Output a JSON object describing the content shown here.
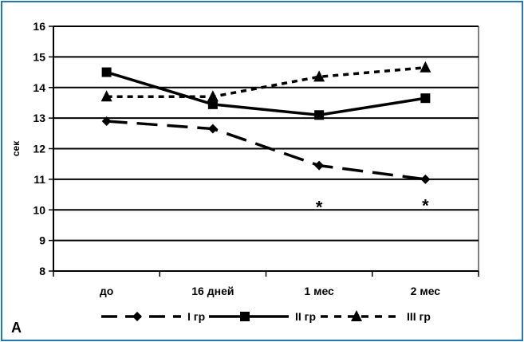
{
  "chart_data": {
    "type": "line",
    "panel_label": "А",
    "ylabel": "сек",
    "xlabel": "",
    "categories": [
      "до",
      "16 дней",
      "1 мес",
      "2 мес"
    ],
    "ylim": [
      8,
      16
    ],
    "yticks": [
      8,
      9,
      10,
      11,
      12,
      13,
      14,
      15,
      16
    ],
    "grid": "horizontal",
    "legend_position": "bottom",
    "series": [
      {
        "name": "I гр",
        "values": [
          12.9,
          12.65,
          11.45,
          11.0
        ],
        "marker": "diamond",
        "line": "long-dash"
      },
      {
        "name": "II гр",
        "values": [
          14.5,
          13.45,
          13.1,
          13.65
        ],
        "marker": "square",
        "line": "solid"
      },
      {
        "name": "III гр",
        "values": [
          13.7,
          13.7,
          14.35,
          14.65
        ],
        "marker": "triangle",
        "line": "short-dash"
      }
    ],
    "annotations": [
      {
        "text": "*",
        "category": "1 мес",
        "y": 10.25
      },
      {
        "text": "*",
        "category": "2 мес",
        "y": 10.3
      }
    ],
    "colors": {
      "frame": "#1f78b4",
      "series": "#000000"
    }
  }
}
